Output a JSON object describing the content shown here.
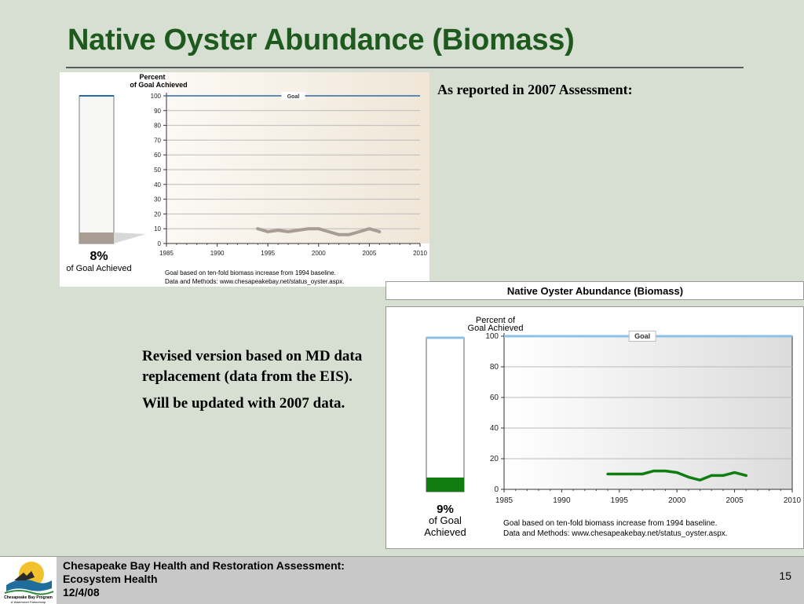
{
  "slide": {
    "title": "Native Oyster Abundance (Biomass)",
    "caption_2007": "As reported in 2007 Assessment:",
    "notes": [
      "Revised version based on MD data replacement (data from the EIS).",
      "Will be updated with 2007 data."
    ]
  },
  "footer": {
    "lines": [
      "Chesapeake Bay Health and Restoration Assessment:",
      "Ecosystem Health",
      "12/4/08"
    ],
    "page_number": "15",
    "logo_text": "Chesapeake Bay Program",
    "logo_tagline": "A Watershed Partnership"
  },
  "chart_data": [
    {
      "type": "line",
      "title": "",
      "ylabel": "Percent of Goal Achieved",
      "goal_label": "Goal",
      "goal_value": 100,
      "gauge_value": 8,
      "gauge_label": "8%",
      "gauge_caption": "of Goal Achieved",
      "xlim": [
        1985,
        2010
      ],
      "ylim": [
        0,
        100
      ],
      "x_ticks": [
        1985,
        1990,
        1995,
        2000,
        2005,
        2010
      ],
      "y_ticks": [
        0,
        10,
        20,
        30,
        40,
        50,
        60,
        70,
        80,
        90,
        100
      ],
      "x": [
        1994,
        1995,
        1996,
        1997,
        1998,
        1999,
        2000,
        2001,
        2002,
        2003,
        2004,
        2005,
        2006
      ],
      "values": [
        10,
        8,
        9,
        8,
        9,
        10,
        10,
        8,
        6,
        6,
        8,
        10,
        8
      ],
      "footnote": [
        "Goal based on ten-fold biomass increase from 1994 baseline.",
        "Data and Methods: www.chesapeakebay.net/status_oyster.aspx."
      ],
      "colors": {
        "line": "#a79d93",
        "goal": "#2b6aa8",
        "gauge_fill": "#a79d93"
      }
    },
    {
      "type": "line",
      "title": "Native Oyster Abundance (Biomass)",
      "ylabel": "Percent of Goal Achieved",
      "goal_label": "Goal",
      "goal_value": 100,
      "gauge_value": 9,
      "gauge_label": "9%",
      "gauge_caption": "of Goal Achieved",
      "xlim": [
        1985,
        2010
      ],
      "ylim": [
        0,
        100
      ],
      "x_ticks": [
        1985,
        1990,
        1995,
        2000,
        2005,
        2010
      ],
      "y_ticks": [
        0,
        20,
        40,
        60,
        80,
        100
      ],
      "x": [
        1994,
        1995,
        1996,
        1997,
        1998,
        1999,
        2000,
        2001,
        2002,
        2003,
        2004,
        2005,
        2006
      ],
      "values": [
        10,
        10,
        10,
        10,
        12,
        12,
        11,
        8,
        6,
        9,
        9,
        11,
        9
      ],
      "footnote": [
        "Goal based on ten-fold biomass increase from 1994 baseline.",
        "Data and Methods: www.chesapeakebay.net/status_oyster.aspx."
      ],
      "colors": {
        "line": "#0f7d10",
        "goal": "#8ec0e8",
        "gauge_fill": "#0f7d10"
      }
    }
  ]
}
